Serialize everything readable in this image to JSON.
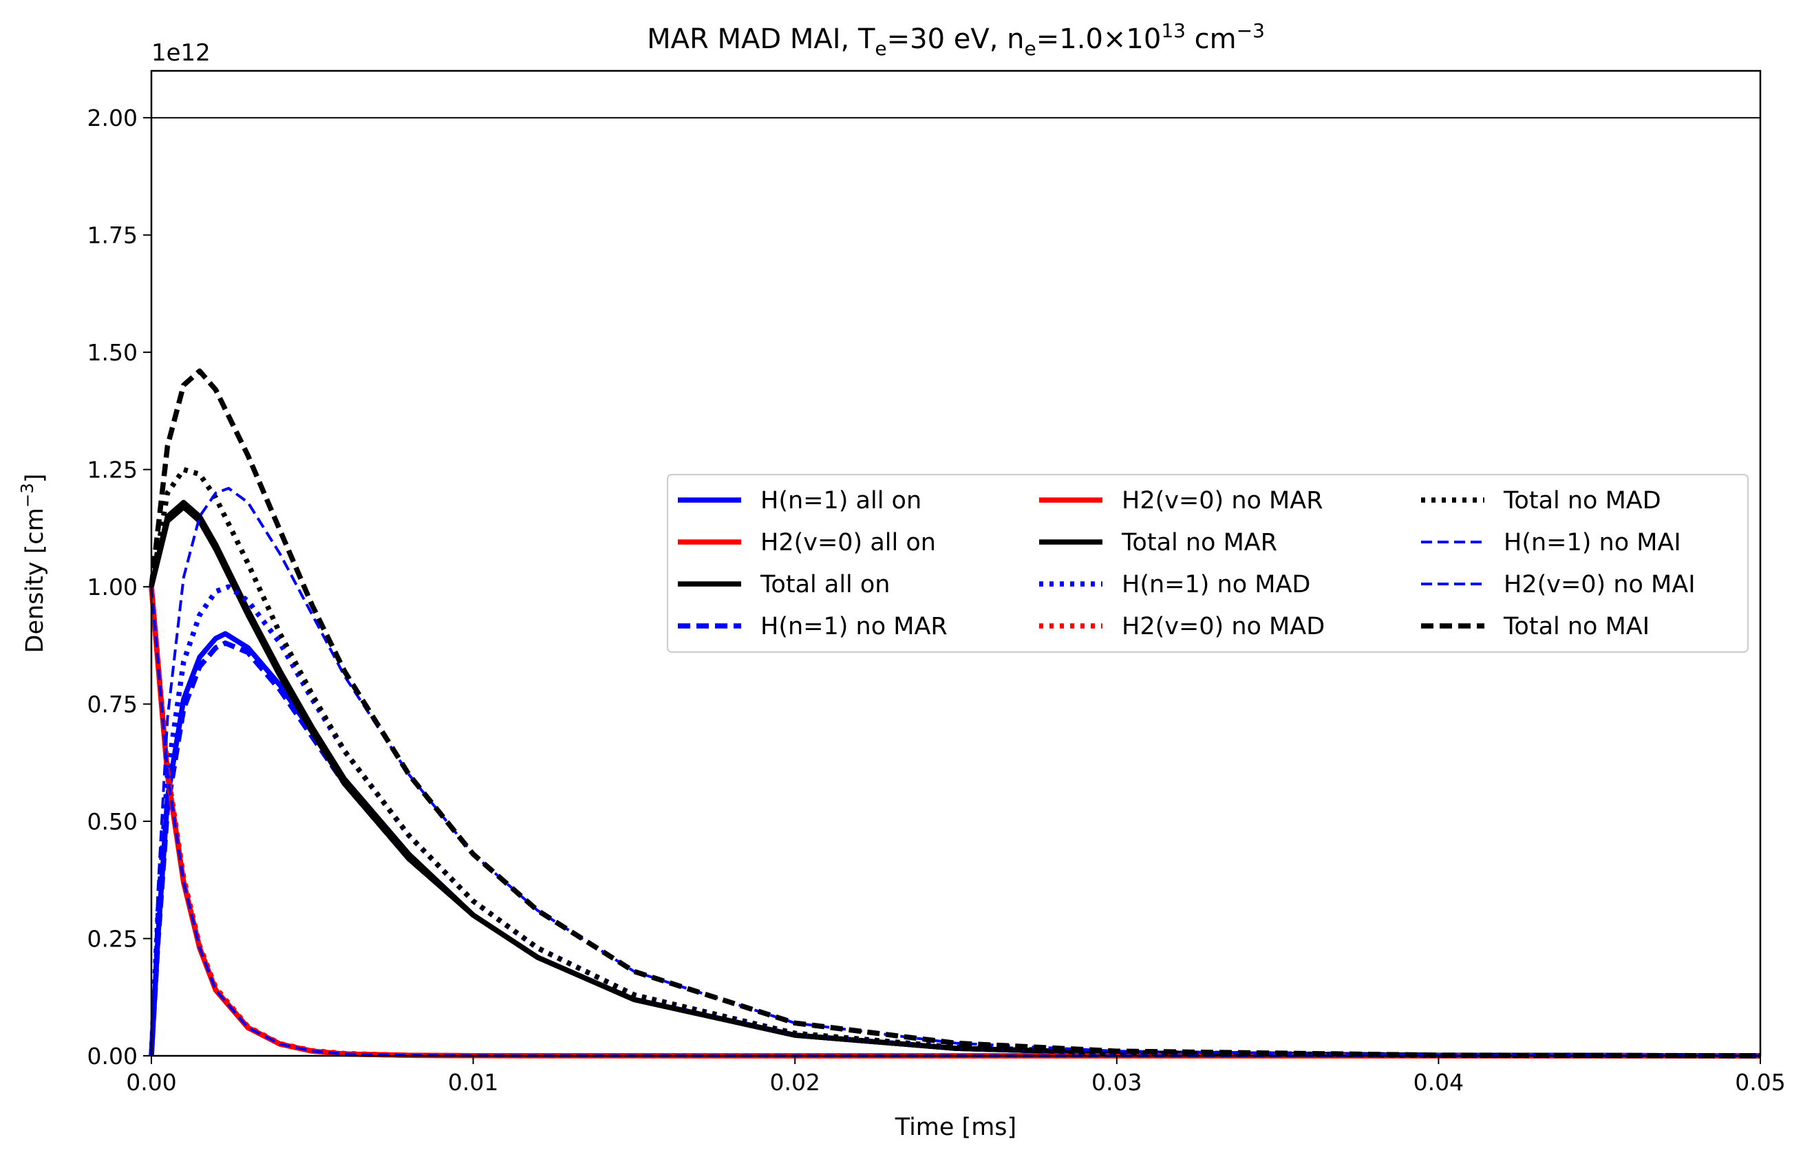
{
  "chart_data": {
    "type": "line",
    "title_parts": [
      {
        "t": "MAR MAD MAI,  T"
      },
      {
        "t": "e",
        "s": "sub"
      },
      {
        "t": "=30 eV, n"
      },
      {
        "t": "e",
        "s": "sub"
      },
      {
        "t": "=1.0×10"
      },
      {
        "t": "13",
        "s": "sup"
      },
      {
        "t": " cm"
      },
      {
        "t": "−3",
        "s": "sup"
      }
    ],
    "xlabel": "Time [ms]",
    "ylabel_parts": [
      {
        "t": "Density [cm"
      },
      {
        "t": "−3",
        "s": "sup"
      },
      {
        "t": "]"
      }
    ],
    "y_offset_text": "1e12",
    "xlim": [
      0,
      0.05
    ],
    "ylim": [
      0,
      2.1
    ],
    "xticks": [
      0,
      0.01,
      0.02,
      0.03,
      0.04,
      0.05
    ],
    "xtick_labels": [
      "0.00",
      "0.01",
      "0.02",
      "0.03",
      "0.04",
      "0.05"
    ],
    "yticks": [
      0,
      0.25,
      0.5,
      0.75,
      1.0,
      1.25,
      1.5,
      1.75,
      2.0
    ],
    "ytick_labels": [
      "0.00",
      "0.25",
      "0.50",
      "0.75",
      "1.00",
      "1.25",
      "1.50",
      "1.75",
      "2.00"
    ],
    "reference_line": {
      "y": 2.0,
      "color": "#000000"
    },
    "grid": false,
    "legend_position": "center-right",
    "legend_columns": 3,
    "series": [
      {
        "name": "H(n=1) all on",
        "color": "#0000ff",
        "style": "solid",
        "width": "thick",
        "x": [
          0,
          0.0002,
          0.0005,
          0.001,
          0.0015,
          0.002,
          0.0023,
          0.003,
          0.004,
          0.005,
          0.006,
          0.008,
          0.01,
          0.012,
          0.015,
          0.02,
          0.025,
          0.03,
          0.04,
          0.05
        ],
        "y": [
          0,
          0.25,
          0.55,
          0.76,
          0.85,
          0.89,
          0.9,
          0.87,
          0.79,
          0.69,
          0.59,
          0.43,
          0.3,
          0.21,
          0.12,
          0.044,
          0.016,
          0.006,
          0.001,
          0.0002
        ]
      },
      {
        "name": "H2(v=0) all on",
        "color": "#ff0000",
        "style": "solid",
        "width": "thick",
        "x": [
          0,
          0.0005,
          0.001,
          0.0015,
          0.002,
          0.003,
          0.004,
          0.005,
          0.006,
          0.008,
          0.01,
          0.015,
          0.02,
          0.05
        ],
        "y": [
          1.0,
          0.6,
          0.37,
          0.23,
          0.14,
          0.06,
          0.025,
          0.01,
          0.004,
          0.001,
          0.0003,
          0.0001,
          0,
          0
        ]
      },
      {
        "name": "Total all on",
        "color": "#000000",
        "style": "solid",
        "width": "thick",
        "x": [
          0,
          0.0005,
          0.001,
          0.0015,
          0.002,
          0.003,
          0.004,
          0.005,
          0.006,
          0.008,
          0.01,
          0.012,
          0.015,
          0.02,
          0.025,
          0.03,
          0.04,
          0.05
        ],
        "y": [
          1.0,
          1.15,
          1.18,
          1.15,
          1.09,
          0.95,
          0.82,
          0.7,
          0.59,
          0.43,
          0.3,
          0.21,
          0.12,
          0.044,
          0.016,
          0.006,
          0.001,
          0.0002
        ]
      },
      {
        "name": "H(n=1) no MAR",
        "color": "#0000ff",
        "style": "dashed",
        "width": "thick",
        "x": [
          0,
          0.0002,
          0.0005,
          0.001,
          0.0015,
          0.002,
          0.0023,
          0.003,
          0.004,
          0.005,
          0.006,
          0.008,
          0.01,
          0.012,
          0.015,
          0.02,
          0.025,
          0.03,
          0.04,
          0.05
        ],
        "y": [
          0,
          0.24,
          0.53,
          0.74,
          0.83,
          0.87,
          0.88,
          0.86,
          0.78,
          0.68,
          0.58,
          0.42,
          0.3,
          0.21,
          0.12,
          0.044,
          0.016,
          0.006,
          0.001,
          0.0002
        ]
      },
      {
        "name": "H2(v=0) no MAR",
        "color": "#ff0000",
        "style": "solid",
        "width": "thick",
        "x": [
          0,
          0.0005,
          0.001,
          0.0015,
          0.002,
          0.003,
          0.004,
          0.005,
          0.006,
          0.008,
          0.01,
          0.015,
          0.02,
          0.05
        ],
        "y": [
          1.0,
          0.6,
          0.37,
          0.23,
          0.14,
          0.06,
          0.025,
          0.01,
          0.004,
          0.001,
          0.0003,
          0.0001,
          0,
          0
        ]
      },
      {
        "name": "Total no MAR",
        "color": "#000000",
        "style": "solid",
        "width": "thick",
        "x": [
          0,
          0.0005,
          0.001,
          0.0015,
          0.002,
          0.003,
          0.004,
          0.005,
          0.006,
          0.008,
          0.01,
          0.012,
          0.015,
          0.02,
          0.025,
          0.03,
          0.04,
          0.05
        ],
        "y": [
          1.0,
          1.14,
          1.17,
          1.14,
          1.08,
          0.94,
          0.81,
          0.69,
          0.58,
          0.42,
          0.3,
          0.21,
          0.12,
          0.044,
          0.016,
          0.006,
          0.001,
          0.0002
        ]
      },
      {
        "name": "H(n=1) no MAD",
        "color": "#0000ff",
        "style": "dotted",
        "width": "thick",
        "x": [
          0,
          0.0002,
          0.0005,
          0.001,
          0.0015,
          0.002,
          0.0024,
          0.003,
          0.004,
          0.005,
          0.006,
          0.008,
          0.01,
          0.012,
          0.015,
          0.02,
          0.025,
          0.03,
          0.04,
          0.05
        ],
        "y": [
          0,
          0.3,
          0.6,
          0.84,
          0.94,
          0.99,
          1.0,
          0.97,
          0.88,
          0.76,
          0.65,
          0.47,
          0.33,
          0.23,
          0.13,
          0.048,
          0.018,
          0.007,
          0.001,
          0.0002
        ]
      },
      {
        "name": "H2(v=0) no MAD",
        "color": "#ff0000",
        "style": "dotted",
        "width": "thick",
        "x": [
          0,
          0.0005,
          0.001,
          0.0015,
          0.002,
          0.003,
          0.004,
          0.005,
          0.006,
          0.008,
          0.01,
          0.015,
          0.02,
          0.05
        ],
        "y": [
          1.0,
          0.61,
          0.38,
          0.235,
          0.145,
          0.062,
          0.026,
          0.011,
          0.005,
          0.001,
          0.0003,
          0.0001,
          0,
          0
        ]
      },
      {
        "name": "Total no MAD",
        "color": "#000000",
        "style": "dotted",
        "width": "thick",
        "x": [
          0,
          0.0005,
          0.001,
          0.0015,
          0.002,
          0.003,
          0.004,
          0.005,
          0.006,
          0.008,
          0.01,
          0.012,
          0.015,
          0.02,
          0.025,
          0.03,
          0.04,
          0.05
        ],
        "y": [
          1.0,
          1.2,
          1.25,
          1.24,
          1.19,
          1.05,
          0.9,
          0.77,
          0.65,
          0.47,
          0.33,
          0.23,
          0.13,
          0.048,
          0.018,
          0.007,
          0.001,
          0.0002
        ]
      },
      {
        "name": "H(n=1) no MAI",
        "color": "#0000ff",
        "style": "dashed",
        "width": "thin",
        "x": [
          0,
          0.0002,
          0.0005,
          0.001,
          0.0015,
          0.002,
          0.0024,
          0.003,
          0.004,
          0.005,
          0.006,
          0.008,
          0.01,
          0.012,
          0.015,
          0.02,
          0.025,
          0.03,
          0.04,
          0.05
        ],
        "y": [
          0,
          0.35,
          0.72,
          1.02,
          1.15,
          1.2,
          1.21,
          1.18,
          1.07,
          0.94,
          0.81,
          0.6,
          0.43,
          0.31,
          0.18,
          0.07,
          0.027,
          0.01,
          0.0015,
          0.0002
        ]
      },
      {
        "name": "H2(v=0) no MAI",
        "color": "#0000ff",
        "style": "dashed",
        "width": "thin",
        "x": [
          0,
          0.0005,
          0.001,
          0.0015,
          0.002,
          0.003,
          0.004,
          0.005,
          0.006,
          0.008,
          0.01,
          0.015,
          0.02,
          0.05
        ],
        "y": [
          1.0,
          0.6,
          0.37,
          0.23,
          0.14,
          0.06,
          0.025,
          0.01,
          0.004,
          0.001,
          0.0003,
          0.0001,
          0,
          0
        ]
      },
      {
        "name": "Total no MAI",
        "color": "#000000",
        "style": "dashed",
        "width": "thick",
        "x": [
          0,
          0.0005,
          0.001,
          0.0015,
          0.002,
          0.003,
          0.004,
          0.005,
          0.006,
          0.008,
          0.01,
          0.012,
          0.015,
          0.02,
          0.025,
          0.03,
          0.04,
          0.05
        ],
        "y": [
          1.0,
          1.3,
          1.43,
          1.46,
          1.42,
          1.28,
          1.12,
          0.96,
          0.82,
          0.6,
          0.43,
          0.31,
          0.18,
          0.07,
          0.027,
          0.01,
          0.0015,
          0.0002
        ]
      }
    ]
  }
}
